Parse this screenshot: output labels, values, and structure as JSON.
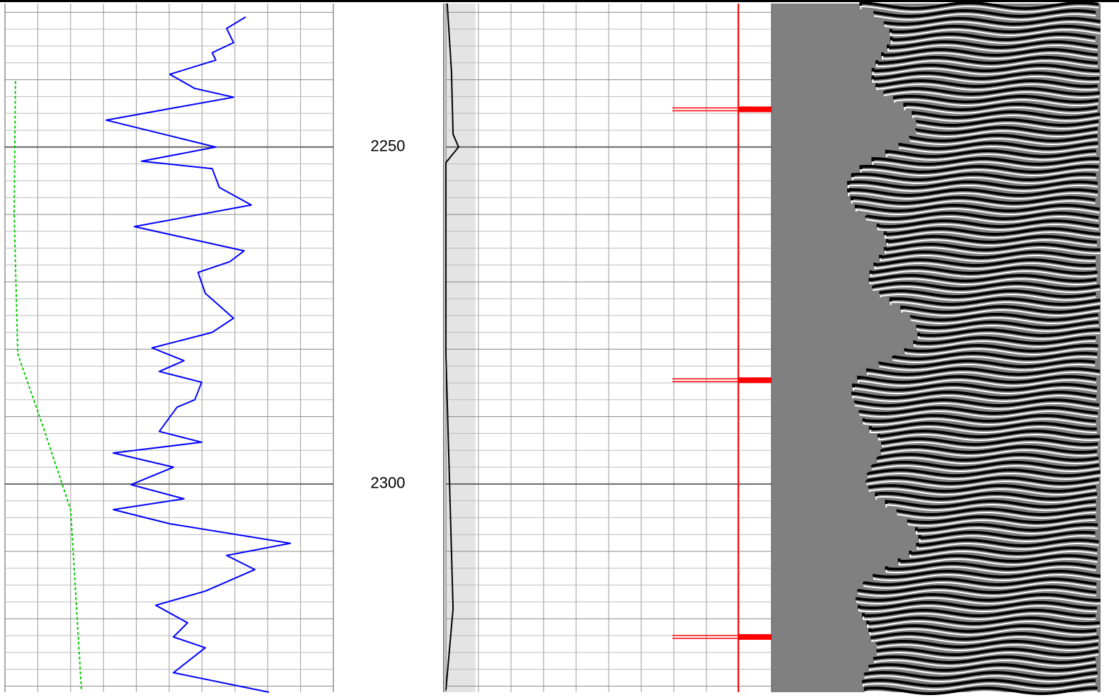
{
  "chart_data": {
    "type": "line",
    "ylim": [
      2228.7,
      2330.9
    ],
    "yticks": [
      2250,
      2300
    ],
    "tracks": [
      {
        "xlim": [
          0,
          10
        ]
      },
      {
        "xlim": [
          0,
          10
        ]
      }
    ],
    "series": [
      {
        "track": 0,
        "color": "#0000ff",
        "dash": false,
        "values": [
          7.33,
          6.75,
          6.96,
          6.31,
          6.42,
          5.02,
          5.78,
          6.96,
          3.08,
          6.42,
          4.16,
          6.31,
          6.53,
          7.5,
          3.94,
          7.28,
          6.85,
          5.88,
          6.1,
          6.96,
          6.31,
          4.48,
          5.45,
          4.7,
          5.99,
          5.78,
          5.24,
          4.7,
          5.99,
          3.3,
          5.13,
          3.84,
          5.45,
          3.3,
          5.02,
          8.69,
          6.75,
          7.61,
          6.1,
          4.59,
          5.56,
          5.13,
          6.1,
          5.13,
          8.04
        ],
        "depths": [
          2230.7,
          2232.4,
          2234.5,
          2236.0,
          2237.1,
          2239.2,
          2241.3,
          2242.6,
          2246.0,
          2250.0,
          2252.1,
          2253.2,
          2256.0,
          2258.6,
          2261.8,
          2265.4,
          2267.0,
          2268.6,
          2271.7,
          2275.4,
          2277.5,
          2279.8,
          2281.7,
          2283.3,
          2284.9,
          2287.5,
          2288.6,
          2292.2,
          2293.8,
          2295.4,
          2297.5,
          2300.1,
          2302.2,
          2303.8,
          2305.9,
          2308.8,
          2310.6,
          2312.7,
          2315.9,
          2318.0,
          2320.6,
          2322.7,
          2324.3,
          2328.0,
          2330.9
        ]
      },
      {
        "track": 0,
        "color": "#00cc00",
        "dash": true,
        "values": [
          0.32,
          0.28,
          0.39,
          1.14,
          2.0,
          2.33
        ],
        "depths": [
          2240.2,
          2259.7,
          2280.7,
          2291.2,
          2303.8,
          2330.6
        ]
      },
      {
        "track": 1,
        "color": "#000000",
        "dash": false,
        "values": [
          0.04,
          0.17,
          0.22,
          0.39,
          0.0,
          0.0,
          0.22,
          0.0
        ],
        "depths": [
          2228.7,
          2238.7,
          2248.1,
          2250.0,
          2252.3,
          2280.7,
          2318.5,
          2330.6
        ]
      }
    ],
    "reference_x": 8.98,
    "markers": [
      2244.4,
      2284.6,
      2322.7
    ],
    "marker_color": "#ff0000"
  }
}
